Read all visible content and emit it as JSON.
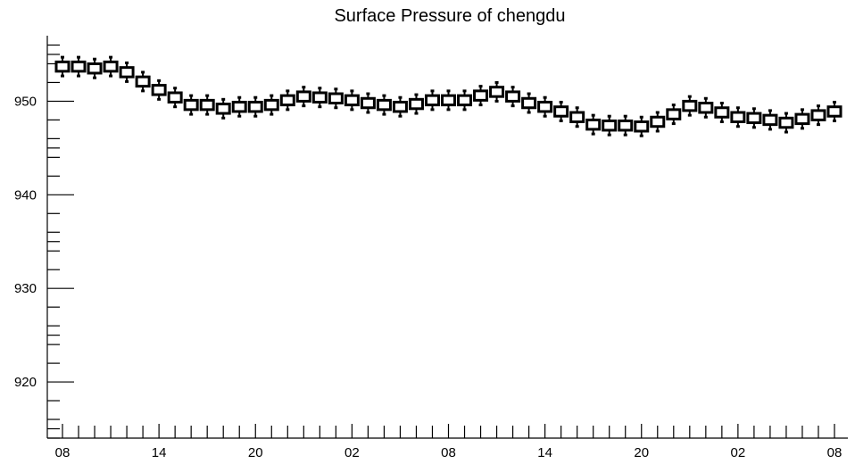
{
  "chart_data": {
    "type": "box",
    "title": "Surface Pressure of chengdu",
    "xlabel": "",
    "ylabel": "",
    "ylim": [
      914,
      957
    ],
    "y_ticks": [
      920,
      930,
      940,
      950
    ],
    "y_tick_labels": [
      "920",
      "930",
      "940",
      "950"
    ],
    "x_tick_labels": [
      "08",
      "14",
      "20",
      "02",
      "08",
      "14",
      "20",
      "02",
      "08"
    ],
    "x_tick_label_index": [
      0,
      6,
      12,
      18,
      24,
      30,
      36,
      42,
      48
    ],
    "x_points": 49,
    "grid": false,
    "legend": "none",
    "medians": [
      953.7,
      953.7,
      953.5,
      953.7,
      953.1,
      952.1,
      951.2,
      950.4,
      949.6,
      949.6,
      949.2,
      949.4,
      949.4,
      949.6,
      950.1,
      950.5,
      950.4,
      950.3,
      950.1,
      949.8,
      949.6,
      949.4,
      949.7,
      950.1,
      950.1,
      950.1,
      950.6,
      951.0,
      950.5,
      949.8,
      949.4,
      948.9,
      948.3,
      947.5,
      947.4,
      947.4,
      947.3,
      947.8,
      948.6,
      949.5,
      949.3,
      948.8,
      948.3,
      948.2,
      948.0,
      947.7,
      948.1,
      948.5,
      948.9
    ],
    "box_half_height": 0.5,
    "whisker_extent": 1.0
  }
}
